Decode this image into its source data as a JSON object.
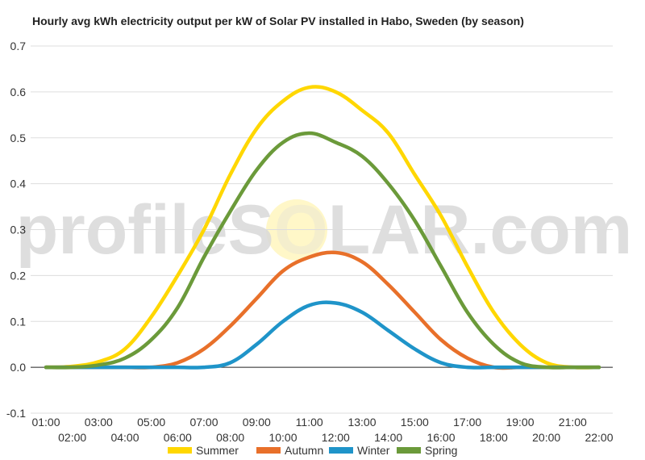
{
  "watermark": {
    "left": "profileS",
    "middle": "O",
    "right": "LAR.com"
  },
  "chart_data": {
    "type": "line",
    "title": "Hourly avg kWh electricity output per kW of Solar PV installed in Habo, Sweden (by season)",
    "xlabel": "",
    "ylabel": "",
    "x": [
      "01:00",
      "02:00",
      "03:00",
      "04:00",
      "05:00",
      "06:00",
      "07:00",
      "08:00",
      "09:00",
      "10:00",
      "11:00",
      "12:00",
      "13:00",
      "14:00",
      "15:00",
      "16:00",
      "17:00",
      "18:00",
      "19:00",
      "20:00",
      "21:00",
      "22:00"
    ],
    "ylim": [
      -0.1,
      0.7
    ],
    "yticks": [
      -0.1,
      0.0,
      0.1,
      0.2,
      0.3,
      0.4,
      0.5,
      0.6,
      0.7
    ],
    "ytick_labels": [
      "-0.1",
      "0.0",
      "0.1",
      "0.2",
      "0.3",
      "0.4",
      "0.5",
      "0.6",
      "0.7"
    ],
    "grid": true,
    "legend": "bottom",
    "series": [
      {
        "name": "Summer",
        "color": "#ffd700",
        "values": [
          0.0,
          0.002,
          0.012,
          0.04,
          0.11,
          0.2,
          0.3,
          0.42,
          0.52,
          0.58,
          0.61,
          0.6,
          0.56,
          0.51,
          0.42,
          0.33,
          0.22,
          0.12,
          0.05,
          0.01,
          0.0,
          0.0
        ]
      },
      {
        "name": "Autumn",
        "color": "#e8702a",
        "values": [
          0.0,
          0.0,
          0.0,
          0.0,
          0.0,
          0.01,
          0.04,
          0.09,
          0.15,
          0.21,
          0.24,
          0.25,
          0.23,
          0.18,
          0.12,
          0.06,
          0.02,
          0.0,
          0.0,
          0.0,
          0.0,
          0.0
        ]
      },
      {
        "name": "Winter",
        "color": "#1f94c9",
        "values": [
          0.0,
          0.0,
          0.0,
          0.0,
          0.0,
          0.0,
          0.0,
          0.01,
          0.05,
          0.1,
          0.135,
          0.14,
          0.12,
          0.08,
          0.04,
          0.01,
          0.0,
          0.0,
          0.0,
          0.0,
          0.0,
          0.0
        ]
      },
      {
        "name": "Spring",
        "color": "#6b9a3a",
        "values": [
          0.0,
          0.0,
          0.005,
          0.02,
          0.06,
          0.13,
          0.24,
          0.34,
          0.43,
          0.49,
          0.51,
          0.49,
          0.46,
          0.4,
          0.32,
          0.22,
          0.12,
          0.05,
          0.01,
          0.0,
          0.0,
          0.0
        ]
      }
    ]
  }
}
